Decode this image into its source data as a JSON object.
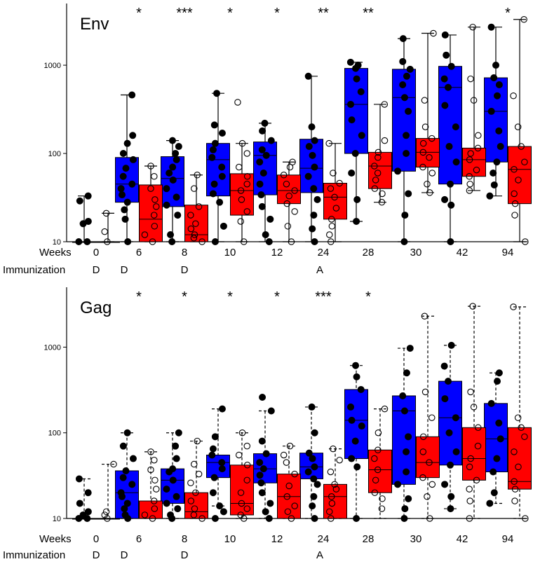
{
  "chart_data": [
    {
      "type": "box",
      "title": "Env",
      "yscale": "log",
      "ylim": [
        10,
        5000
      ],
      "ytick_values": [
        10,
        100,
        1000
      ],
      "ytick_labels": [
        "10",
        "100",
        "1000"
      ],
      "row_labels": {
        "weeks": "Weeks",
        "immunization": "Immunization"
      },
      "categories": [
        "0",
        "6",
        "8",
        "10",
        "12",
        "24",
        "28",
        "30",
        "42",
        "94"
      ],
      "immunization": [
        "D",
        "D",
        "D",
        "",
        "",
        "A",
        "",
        "",
        "",
        ""
      ],
      "significance": [
        "",
        "*",
        "***",
        "*",
        "*",
        "**",
        "**",
        "",
        "",
        "*"
      ],
      "colors": {
        "blue": "#0000ff",
        "red": "#ff0000"
      },
      "series": [
        {
          "name": "blue",
          "color": "#0000ff",
          "style": "solid",
          "boxes": [
            [
              10,
              10,
              10,
              10,
              33
            ],
            [
              10,
              28,
              45,
              90,
              460
            ],
            [
              10,
              25,
              52,
              92,
              140
            ],
            [
              10,
              33,
              85,
              130,
              480
            ],
            [
              10,
              34,
              95,
              135,
              220
            ],
            [
              10,
              36,
              68,
              145,
              750
            ],
            [
              17,
              100,
              360,
              920,
              1080
            ],
            [
              10,
              63,
              430,
              900,
              2000
            ],
            [
              10,
              45,
              560,
              970,
              2200
            ],
            [
              33,
              80,
              300,
              720,
              2700
            ]
          ],
          "points": [
            [
              10,
              10,
              16,
              17,
              29,
              33
            ],
            [
              10,
              18,
              23,
              28,
              34,
              40,
              45,
              55,
              68,
              85,
              100,
              130,
              160,
              460
            ],
            [
              10,
              12,
              20,
              26,
              32,
              40,
              50,
              60,
              70,
              85,
              100,
              120,
              140
            ],
            [
              10,
              15,
              28,
              35,
              45,
              55,
              70,
              90,
              110,
              130,
              170,
              210,
              480
            ],
            [
              10,
              12,
              18,
              25,
              34,
              45,
              60,
              80,
              95,
              110,
              140,
              180,
              220
            ],
            [
              10,
              14,
              20,
              30,
              40,
              55,
              70,
              95,
              120,
              140,
              200,
              750
            ],
            [
              17,
              30,
              60,
              100,
              160,
              240,
              360,
              500,
              700,
              920,
              1000,
              1080
            ],
            [
              10,
              20,
              35,
              63,
              100,
              160,
              300,
              430,
              600,
              750,
              900,
              1100,
              2000
            ],
            [
              10,
              26,
              30,
              45,
              80,
              120,
              200,
              350,
              560,
              700,
              970,
              1300,
              2200
            ],
            [
              33,
              44,
              60,
              80,
              120,
              180,
              300,
              450,
              600,
              720,
              1000,
              2700
            ]
          ]
        },
        {
          "name": "red",
          "color": "#ff0000",
          "style": "solid",
          "boxes": [
            [
              10,
              10,
              10,
              10,
              21
            ],
            [
              10,
              10,
              18,
              44,
              72
            ],
            [
              10,
              10,
              12,
              26,
              57
            ],
            [
              10,
              20,
              38,
              59,
              130
            ],
            [
              10,
              27,
              38,
              57,
              80
            ],
            [
              10,
              18,
              32,
              46,
              130
            ],
            [
              28,
              40,
              72,
              103,
              360
            ],
            [
              36,
              70,
              103,
              148,
              2300
            ],
            [
              38,
              55,
              85,
              115,
              2700
            ],
            [
              10,
              27,
              66,
              120,
              3300
            ]
          ],
          "points": [
            [
              10,
              13,
              21
            ],
            [
              10,
              12,
              15,
              20,
              25,
              30,
              40,
              55,
              72
            ],
            [
              10,
              11,
              12,
              14,
              16,
              20,
              25,
              40,
              57
            ],
            [
              10,
              17,
              22,
              30,
              38,
              45,
              55,
              70,
              100,
              130,
              380
            ],
            [
              10,
              15,
              22,
              27,
              33,
              38,
              45,
              57,
              70,
              80
            ],
            [
              10,
              12,
              15,
              18,
              24,
              32,
              40,
              46,
              60,
              130
            ],
            [
              28,
              35,
              40,
              50,
              60,
              72,
              90,
              103,
              140,
              360
            ],
            [
              36,
              45,
              60,
              70,
              90,
              103,
              130,
              148,
              200,
              400,
              2300
            ],
            [
              38,
              45,
              55,
              65,
              85,
              100,
              115,
              160,
              400,
              700,
              2700
            ],
            [
              10,
              20,
              27,
              35,
              50,
              66,
              80,
              120,
              200,
              450,
              3300
            ]
          ]
        }
      ]
    },
    {
      "type": "box",
      "title": "Gag",
      "yscale": "log",
      "ylim": [
        10,
        5000
      ],
      "ytick_values": [
        10,
        100,
        1000
      ],
      "ytick_labels": [
        "10",
        "100",
        "1000"
      ],
      "row_labels": {
        "weeks": "Weeks",
        "immunization": "Immunization"
      },
      "categories": [
        "0",
        "6",
        "8",
        "10",
        "12",
        "24",
        "28",
        "30",
        "42",
        "94"
      ],
      "immunization": [
        "D",
        "D",
        "D",
        "",
        "",
        "A",
        "",
        "",
        "",
        ""
      ],
      "significance": [
        "",
        "*",
        "*",
        "*",
        "*",
        "***",
        "*",
        "",
        "",
        ""
      ],
      "colors": {
        "blue": "#0000ff",
        "red": "#ff0000"
      },
      "series": [
        {
          "name": "blue",
          "color": "#0000ff",
          "style": "dashed",
          "boxes": [
            [
              10,
              10,
              10,
              10,
              29
            ],
            [
              10,
              10,
              20,
              36,
              100
            ],
            [
              10,
              15,
              28,
              38,
              100
            ],
            [
              14,
              30,
              45,
              55,
              190
            ],
            [
              10,
              26,
              38,
              57,
              180
            ],
            [
              10,
              29,
              40,
              58,
              200
            ],
            [
              10,
              50,
              140,
              320,
              610
            ],
            [
              10,
              25,
              180,
              270,
              970
            ],
            [
              13,
              42,
              150,
              400,
              1050
            ],
            [
              15,
              35,
              85,
              220,
              500
            ]
          ],
          "points": [
            [
              10,
              10,
              11,
              12,
              15,
              20,
              29
            ],
            [
              10,
              11,
              13,
              15,
              18,
              20,
              25,
              30,
              36,
              50,
              70,
              100
            ],
            [
              10,
              11,
              13,
              15,
              18,
              22,
              28,
              35,
              38,
              50,
              70,
              100
            ],
            [
              10,
              12,
              14,
              20,
              30,
              38,
              45,
              55,
              65,
              90,
              190
            ],
            [
              10,
              12,
              15,
              20,
              26,
              32,
              38,
              45,
              57,
              80,
              180,
              260
            ],
            [
              10,
              14,
              18,
              25,
              29,
              35,
              40,
              50,
              58,
              100,
              200
            ],
            [
              10,
              40,
              50,
              80,
              120,
              140,
              200,
              320,
              450,
              610
            ],
            [
              10,
              13,
              17,
              25,
              35,
              60,
              90,
              180,
              270,
              500,
              970
            ],
            [
              13,
              18,
              25,
              42,
              60,
              100,
              150,
              250,
              400,
              600,
              1050
            ],
            [
              15,
              20,
              35,
              50,
              85,
              130,
              220,
              400,
              500
            ]
          ]
        },
        {
          "name": "red",
          "color": "#ff0000",
          "style": "dashed",
          "boxes": [
            [
              10,
              10,
              10,
              10,
              43
            ],
            [
              10,
              10,
              10,
              16,
              60
            ],
            [
              10,
              10,
              12,
              20,
              80
            ],
            [
              10,
              11,
              15,
              42,
              100
            ],
            [
              10,
              10,
              18,
              33,
              70
            ],
            [
              10,
              10,
              18,
              25,
              65
            ],
            [
              10,
              20,
              37,
              63,
              190
            ],
            [
              10,
              30,
              45,
              90,
              2300
            ],
            [
              10,
              28,
              50,
              115,
              3000
            ],
            [
              10,
              22,
              27,
              115,
              2950
            ]
          ],
          "points": [
            [
              10,
              11,
              12,
              43
            ],
            [
              10,
              11,
              13,
              16,
              22,
              28,
              37,
              48,
              60
            ],
            [
              10,
              11,
              13,
              16,
              20,
              26,
              33,
              43,
              80
            ],
            [
              10,
              11,
              13,
              15,
              20,
              28,
              42,
              55,
              70,
              100
            ],
            [
              10,
              12,
              14,
              18,
              24,
              33,
              45,
              55,
              70
            ],
            [
              10,
              12,
              15,
              18,
              22,
              25,
              35,
              48,
              65
            ],
            [
              13,
              17,
              20,
              28,
              37,
              50,
              63,
              100,
              190
            ],
            [
              10,
              18,
              25,
              30,
              45,
              60,
              90,
              150,
              300,
              2300
            ],
            [
              10,
              16,
              22,
              28,
              40,
              50,
              70,
              115,
              200,
              300,
              3000
            ],
            [
              10,
              16,
              22,
              27,
              40,
              60,
              90,
              115,
              150,
              2950
            ]
          ]
        }
      ]
    }
  ]
}
